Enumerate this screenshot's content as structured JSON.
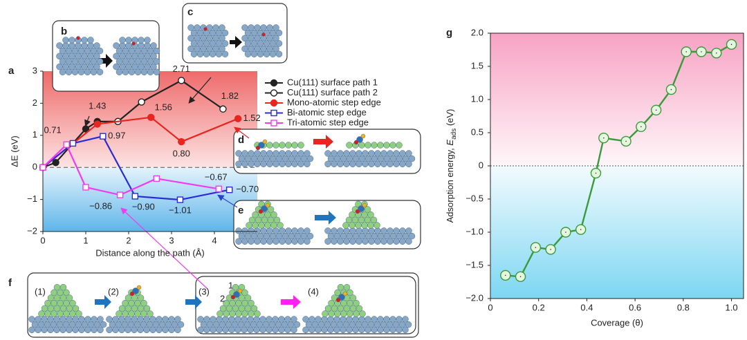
{
  "chart_data": [
    {
      "type": "line",
      "panel": "a",
      "xlabel": "Distance along the path (Å)",
      "ylabel": "ΔE (eV)",
      "xlim": [
        0,
        5
      ],
      "ylim": [
        -2,
        3
      ],
      "xticks": [
        0,
        1,
        2,
        3,
        4
      ],
      "yticks": [
        {
          "value": -2,
          "label": "−2"
        },
        {
          "value": -1,
          "label": "−1"
        },
        0,
        1,
        2,
        3
      ],
      "legend": "right",
      "series": [
        {
          "name": "Cu(111) surface path 1",
          "color": "#222222",
          "marker": "circle",
          "filled": true,
          "x": [
            0,
            0.3,
            1,
            1.27,
            1.75
          ],
          "values": [
            0,
            0.15,
            1.2,
            1.43,
            1.43
          ],
          "value_labels": [
            null,
            null,
            null,
            "1.43",
            null
          ]
        },
        {
          "name": "Cu(111) surface path 2",
          "color": "#222222",
          "marker": "circle",
          "filled": false,
          "x": [
            1.75,
            2.3,
            3.23,
            4.2
          ],
          "values": [
            1.43,
            2.04,
            2.71,
            1.82
          ],
          "value_labels": [
            null,
            null,
            "2.71",
            "1.82"
          ]
        },
        {
          "name": "Mono-atomic step edge",
          "color": "#e8251f",
          "marker": "circle",
          "filled": true,
          "x": [
            0,
            1.27,
            2.52,
            3.23,
            4.55
          ],
          "values": [
            0,
            1.35,
            1.56,
            0.8,
            1.52
          ],
          "value_labels": [
            null,
            null,
            "1.56",
            "0.80",
            "1.52"
          ]
        },
        {
          "name": "Bi-atomic step edge",
          "color": "#2b2bd6",
          "marker": "square",
          "filled": false,
          "x": [
            0,
            0.7,
            1.4,
            2.15,
            3.2,
            4.35
          ],
          "values": [
            0,
            0.75,
            0.97,
            -0.9,
            -1.01,
            -0.7
          ],
          "value_labels": [
            null,
            null,
            "0.97",
            "−0.90",
            "−1.01",
            "−0.70"
          ]
        },
        {
          "name": "Tri-atomic step edge",
          "color": "#f03cf0",
          "marker": "square",
          "filled": false,
          "x": [
            0,
            0.55,
            1.0,
            1.8,
            2.65,
            4.1
          ],
          "values": [
            0,
            0.71,
            -0.62,
            -0.86,
            -0.35,
            -0.67
          ],
          "value_labels": [
            null,
            "0.71",
            null,
            "−0.86",
            null,
            "−0.67"
          ]
        }
      ]
    },
    {
      "type": "line",
      "panel": "g",
      "xlabel": "Coverage (θ)",
      "ylabel": [
        "Adsorption energy, ",
        "E",
        "ads",
        " (eV)"
      ],
      "xlim": [
        0,
        1.05
      ],
      "ylim": [
        -2,
        2
      ],
      "xticks": [
        0,
        0.2,
        0.4,
        0.6,
        0.8,
        {
          "value": 1,
          "label": "1.0"
        }
      ],
      "yticks": [
        {
          "value": -2,
          "label": "−2.0"
        },
        {
          "value": -1.5,
          "label": "−1.5"
        },
        {
          "value": -1,
          "label": "−1.0"
        },
        {
          "value": -0.5,
          "label": "−0.5"
        },
        0,
        0.5,
        {
          "value": 1,
          "label": "1.0"
        },
        1.5,
        {
          "value": 2,
          "label": "2.0"
        }
      ],
      "series": [
        {
          "color": "#3a9a3a",
          "marker": "circle",
          "filled": false,
          "x": [
            0.0625,
            0.125,
            0.1875,
            0.25,
            0.3125,
            0.375,
            0.4375,
            0.47,
            0.5625,
            0.625,
            0.6875,
            0.75,
            0.8125,
            0.875,
            0.9375,
            1.0
          ],
          "values": [
            -1.65,
            -1.67,
            -1.23,
            -1.26,
            -1.0,
            -0.96,
            -0.11,
            0.42,
            0.37,
            0.59,
            0.84,
            1.15,
            1.72,
            1.72,
            1.7,
            1.83
          ]
        }
      ]
    }
  ],
  "inset_labels": [
    "b",
    "c",
    "d",
    "e",
    "f"
  ],
  "steps": [
    "(1)",
    "(2)",
    "(3)",
    "(4)"
  ],
  "sites": [
    "1",
    "2"
  ]
}
